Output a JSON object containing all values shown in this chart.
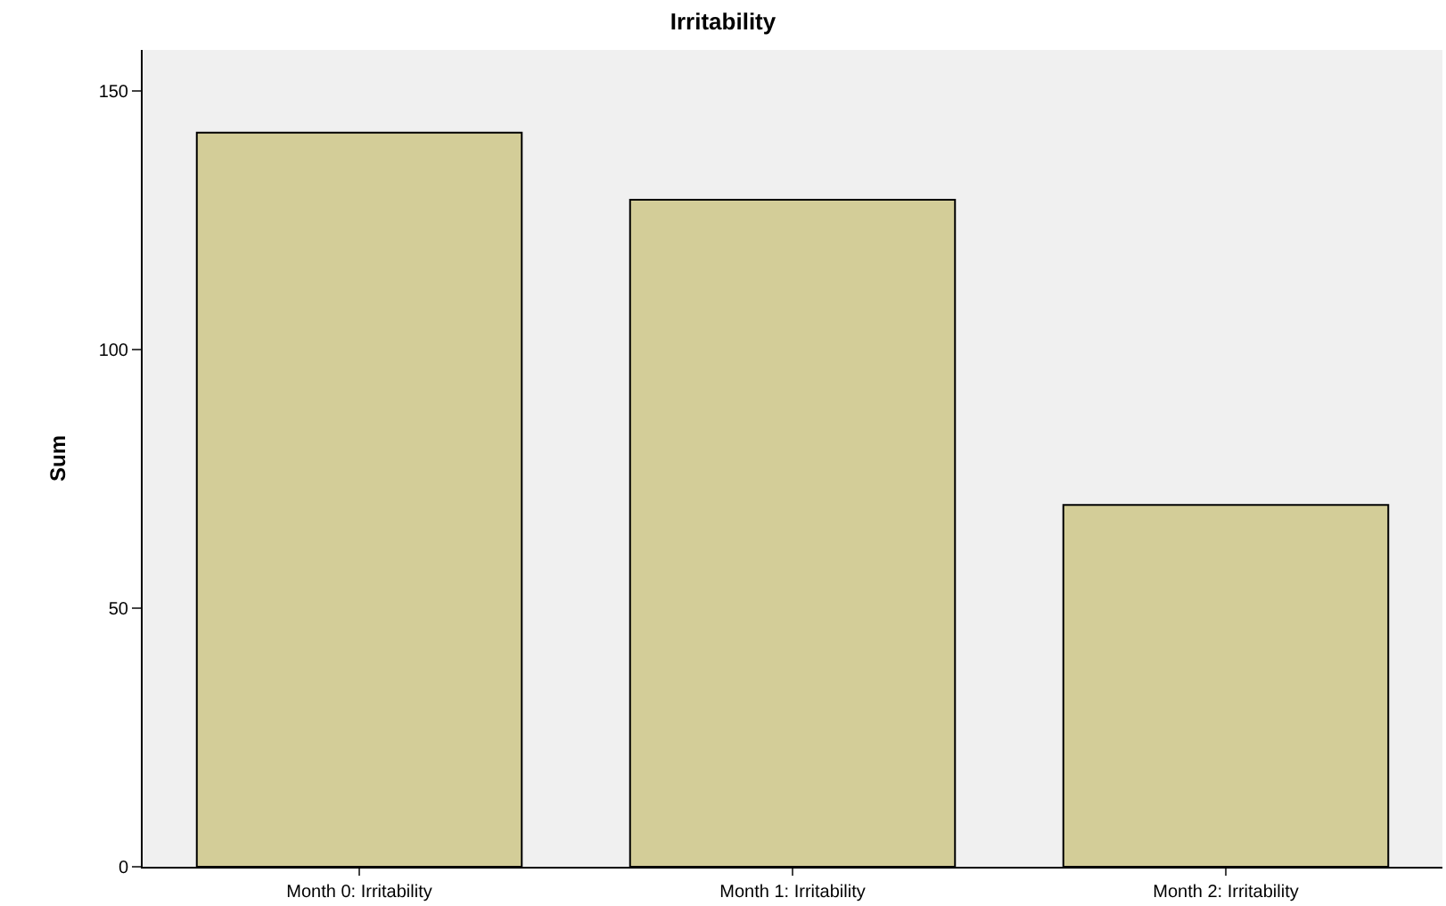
{
  "chart_data": {
    "type": "bar",
    "title": "Irritability",
    "ylabel": "Sum",
    "categories": [
      "Month 0: Irritability",
      "Month 1: Irritability",
      "Month 2: Irritability"
    ],
    "values": [
      142,
      129,
      70
    ],
    "color": "#d3cd98",
    "ylim": [
      0,
      158
    ],
    "yticks": [
      0,
      50,
      100,
      150
    ],
    "grid": false
  }
}
